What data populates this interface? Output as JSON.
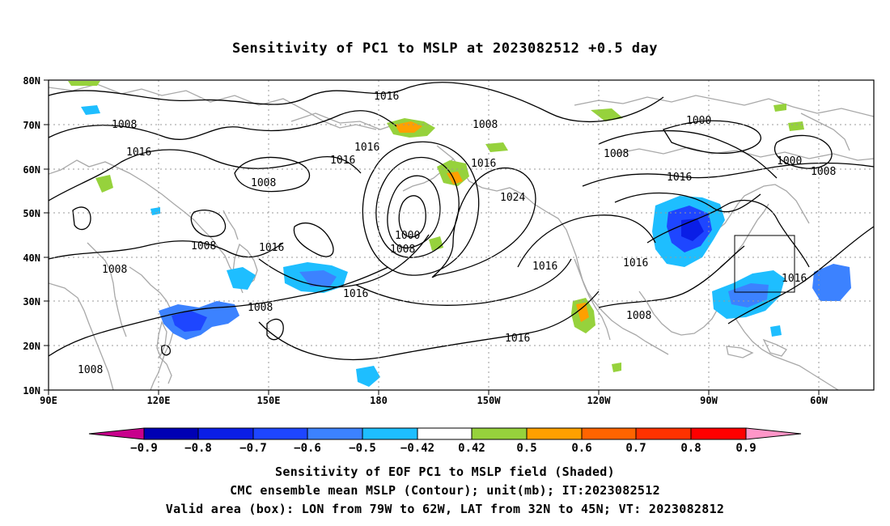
{
  "title": "Sensitivity of PC1 to MSLP at 2023082512 +0.5 day",
  "map": {
    "lat_labels": [
      "80N",
      "70N",
      "60N",
      "50N",
      "40N",
      "30N",
      "20N",
      "10N"
    ],
    "lon_labels": [
      "90E",
      "120E",
      "150E",
      "180",
      "150W",
      "120W",
      "90W",
      "60W"
    ],
    "contour_labels": [
      "1016",
      "1008",
      "1008",
      "1016",
      "1000",
      "1000",
      "1008",
      "1016",
      "1016",
      "1008",
      "1008",
      "1016",
      "1016",
      "1024",
      "1000",
      "1008",
      "1008",
      "1008",
      "1016",
      "1016",
      "1008",
      "1016",
      "1016",
      "1016",
      "1008",
      "1016",
      "1008"
    ],
    "valid_box": {
      "lon_from": "79W",
      "lon_to": "62W",
      "lat_from": "32N",
      "lat_to": "45N"
    }
  },
  "colorbar": {
    "labels": [
      "−0.9",
      "−0.8",
      "−0.7",
      "−0.6",
      "−0.5",
      "−0.42",
      "0.42",
      "0.5",
      "0.6",
      "0.7",
      "0.8",
      "0.9"
    ],
    "colors": [
      "#c8008c",
      "#0000b4",
      "#0a1ee6",
      "#1e46ff",
      "#3c82ff",
      "#1ebeff",
      "#ffffff",
      "#96d23c",
      "#ffa000",
      "#ff6400",
      "#ff3200",
      "#ff0000",
      "#ff96c8"
    ]
  },
  "captions": [
    "Sensitivity of EOF PC1 to MSLP field (Shaded)",
    "CMC ensemble mean MSLP (Contour); unit(mb); IT:2023082512",
    "Valid area (box): LON from 79W to 62W, LAT from 32N to 45N; VT: 2023082812"
  ]
}
